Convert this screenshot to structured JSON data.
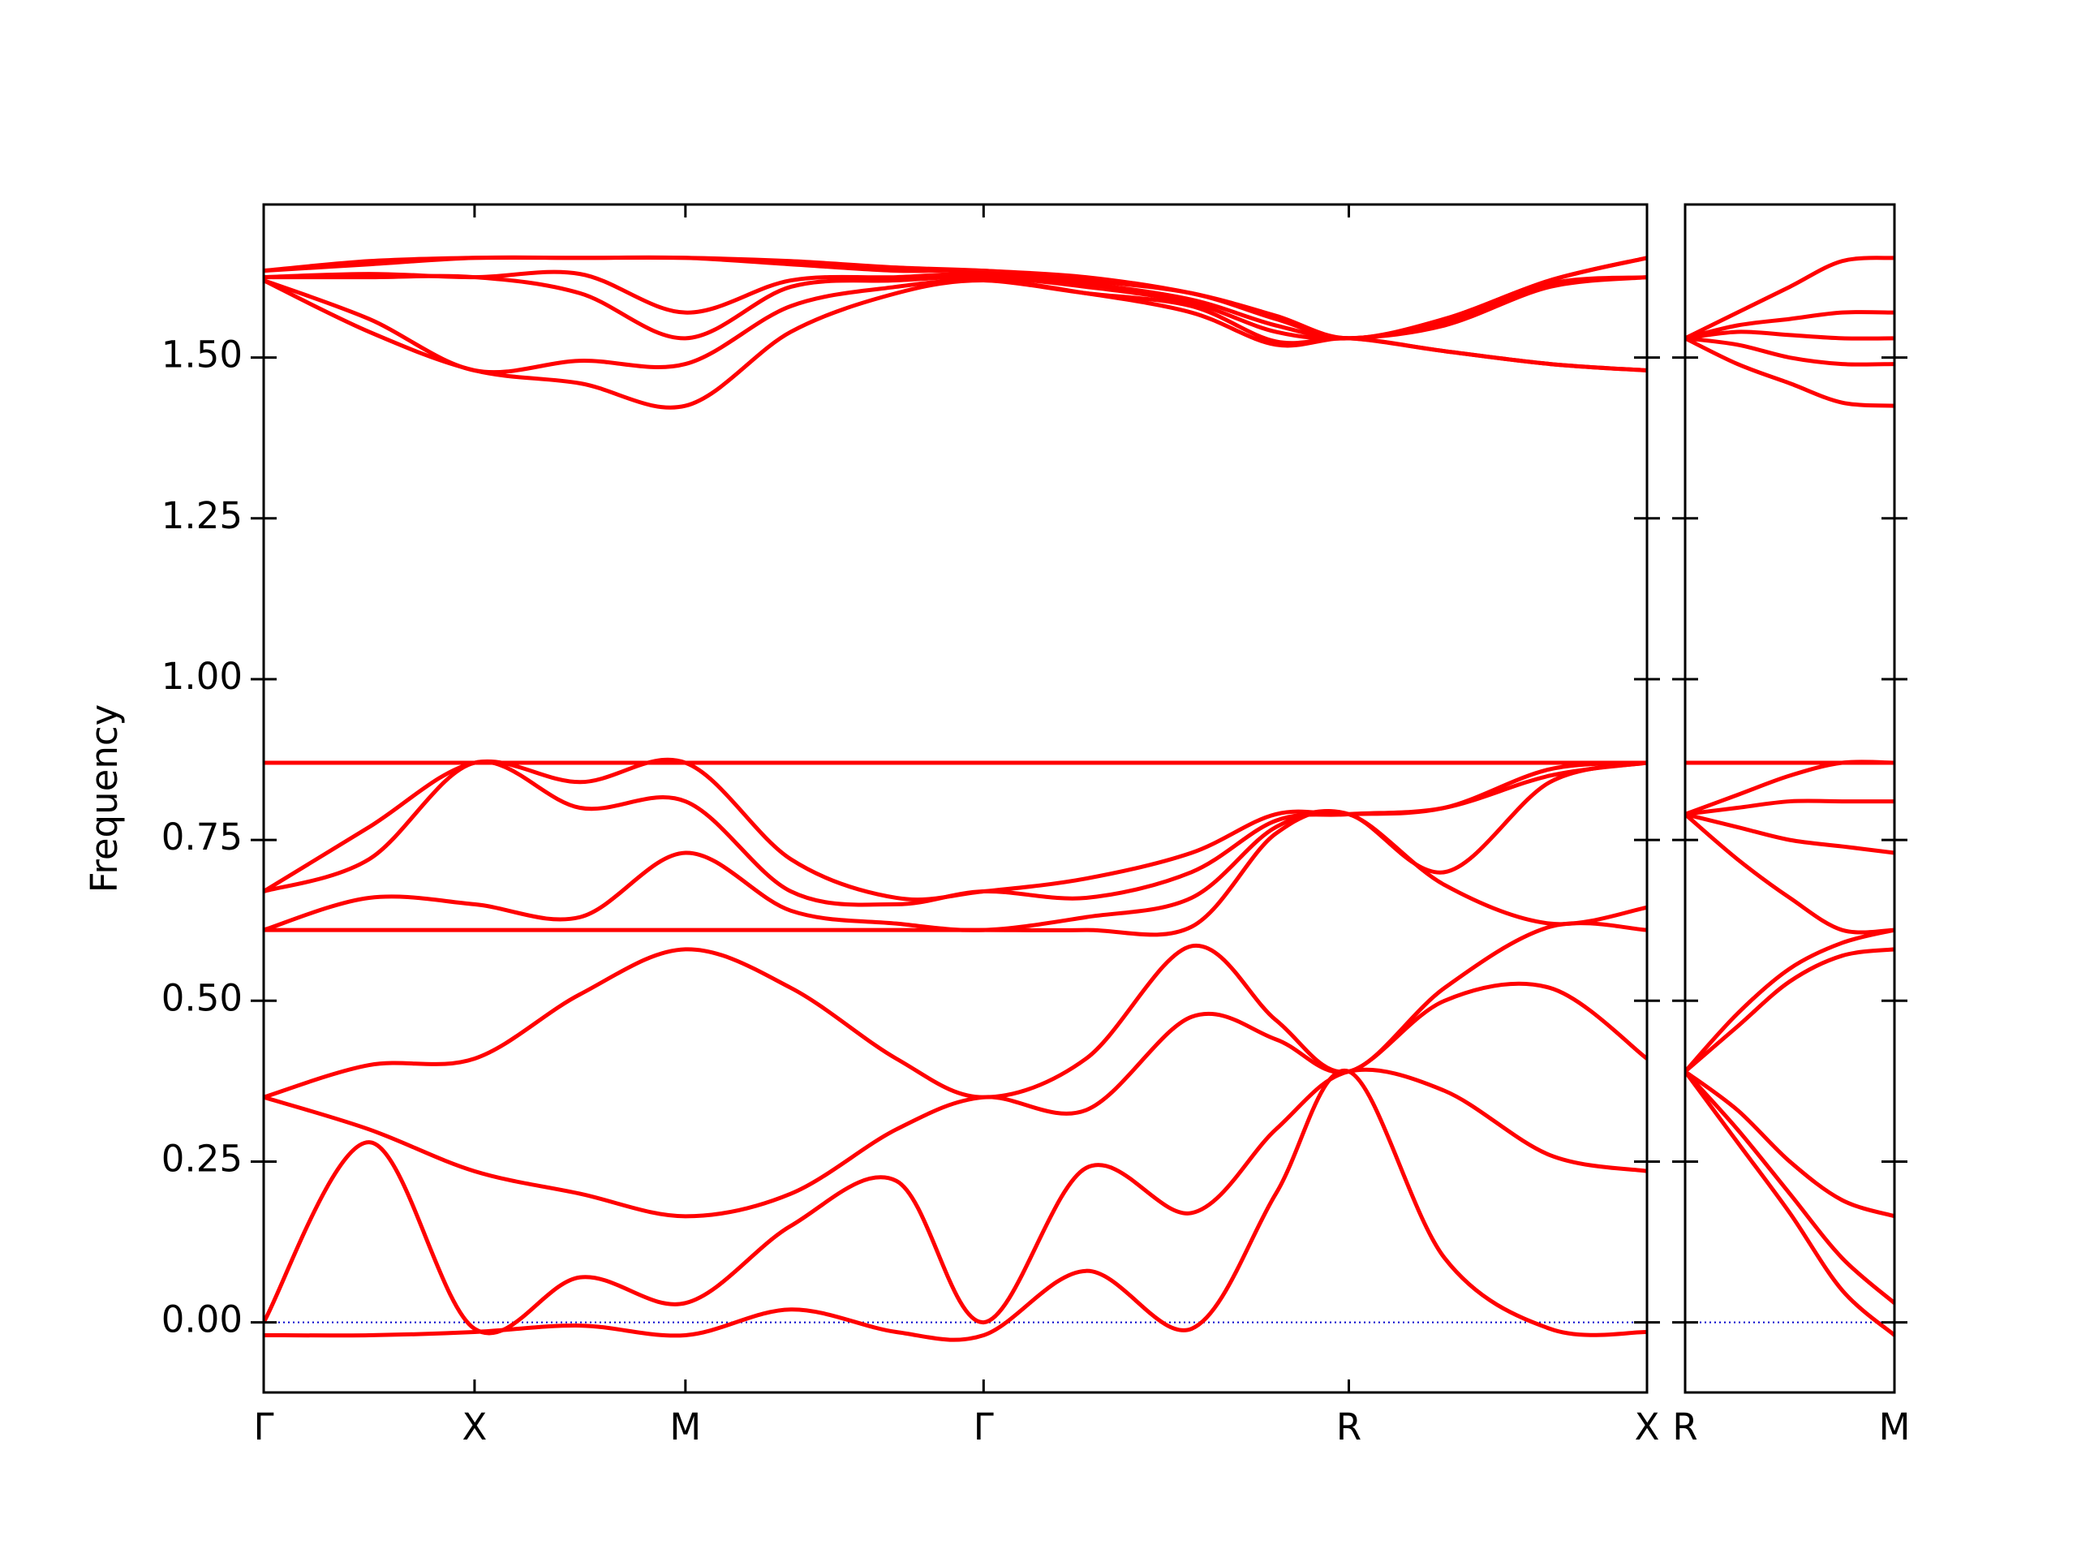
{
  "chart_data": [
    {
      "type": "line",
      "ylabel": "Frequency",
      "color": "#ff0000",
      "zero_line": {
        "value": 0,
        "color": "#0000cc"
      },
      "xlim": [
        0,
        6.56
      ],
      "ylim": [
        -0.109,
        1.738
      ],
      "xticks": [
        {
          "value": 0,
          "label": "Γ"
        },
        {
          "value": 1,
          "label": "X"
        },
        {
          "value": 2,
          "label": "M"
        },
        {
          "value": 3.414,
          "label": "Γ"
        },
        {
          "value": 5.146,
          "label": "R"
        },
        {
          "value": 6.56,
          "label": "X"
        }
      ],
      "yticks": [
        {
          "value": 0,
          "label": "0.00"
        },
        {
          "value": 0.25,
          "label": "0.25"
        },
        {
          "value": 0.5,
          "label": "0.50"
        },
        {
          "value": 0.75,
          "label": "0.75"
        },
        {
          "value": 1,
          "label": "1.00"
        },
        {
          "value": 1.25,
          "label": "1.25"
        },
        {
          "value": 1.5,
          "label": "1.50"
        }
      ],
      "x": [
        0,
        0.5,
        1,
        1.5,
        2,
        2.5,
        3,
        3.414,
        3.9,
        4.4,
        4.8,
        5.146,
        5.6,
        6.1,
        6.56
      ],
      "series": [
        {
          "values": [
            -0.02,
            -0.02,
            -0.015,
            -0.005,
            -0.02,
            0.02,
            -0.015,
            -0.02,
            0.08,
            -0.01,
            0.2,
            0.39,
            0.1,
            -0.01,
            -0.015
          ]
        },
        {
          "values": [
            0.0,
            0.28,
            -0.01,
            0.07,
            0.03,
            0.15,
            0.22,
            0.0,
            0.24,
            0.17,
            0.3,
            0.39,
            0.36,
            0.26,
            0.235
          ]
        },
        {
          "values": [
            0.35,
            0.3,
            0.235,
            0.2,
            0.165,
            0.2,
            0.3,
            0.35,
            0.33,
            0.475,
            0.44,
            0.39,
            0.5,
            0.52,
            0.41
          ]
        },
        {
          "values": [
            0.35,
            0.4,
            0.41,
            0.51,
            0.58,
            0.52,
            0.41,
            0.35,
            0.41,
            0.585,
            0.47,
            0.39,
            0.52,
            0.615,
            0.61
          ]
        },
        {
          "values": [
            0.61,
            0.61,
            0.61,
            0.61,
            0.61,
            0.61,
            0.61,
            0.61,
            0.61,
            0.615,
            0.76,
            0.79,
            0.68,
            0.62,
            0.645
          ]
        },
        {
          "values": [
            0.61,
            0.66,
            0.65,
            0.63,
            0.73,
            0.64,
            0.62,
            0.61,
            0.63,
            0.66,
            0.77,
            0.79,
            0.7,
            0.84,
            0.87
          ]
        },
        {
          "values": [
            0.67,
            0.72,
            0.87,
            0.8,
            0.81,
            0.67,
            0.65,
            0.67,
            0.66,
            0.7,
            0.78,
            0.79,
            0.8,
            0.85,
            0.87
          ]
        },
        {
          "values": [
            0.67,
            0.77,
            0.87,
            0.84,
            0.87,
            0.72,
            0.66,
            0.67,
            0.69,
            0.73,
            0.79,
            0.79,
            0.8,
            0.86,
            0.87
          ]
        },
        {
          "values": [
            0.87,
            0.87,
            0.87,
            0.87,
            0.87,
            0.87,
            0.87,
            0.87,
            0.87,
            0.87,
            0.87,
            0.87,
            0.87,
            0.87,
            0.87
          ]
        },
        {
          "values": [
            1.62,
            1.54,
            1.48,
            1.46,
            1.425,
            1.54,
            1.6,
            1.62,
            1.6,
            1.57,
            1.52,
            1.53,
            1.51,
            1.49,
            1.48
          ]
        },
        {
          "values": [
            1.62,
            1.56,
            1.48,
            1.495,
            1.49,
            1.58,
            1.61,
            1.62,
            1.6,
            1.58,
            1.525,
            1.53,
            1.51,
            1.49,
            1.48
          ]
        },
        {
          "values": [
            1.625,
            1.625,
            1.625,
            1.6,
            1.53,
            1.61,
            1.62,
            1.625,
            1.61,
            1.585,
            1.54,
            1.53,
            1.55,
            1.61,
            1.625
          ]
        },
        {
          "values": [
            1.625,
            1.63,
            1.625,
            1.63,
            1.57,
            1.62,
            1.625,
            1.63,
            1.615,
            1.59,
            1.55,
            1.53,
            1.555,
            1.615,
            1.625
          ]
        },
        {
          "values": [
            1.635,
            1.645,
            1.655,
            1.655,
            1.655,
            1.645,
            1.635,
            1.635,
            1.62,
            1.6,
            1.56,
            1.53,
            1.56,
            1.62,
            1.655
          ]
        },
        {
          "values": [
            1.635,
            1.65,
            1.655,
            1.655,
            1.655,
            1.65,
            1.64,
            1.635,
            1.625,
            1.6,
            1.565,
            1.53,
            1.56,
            1.62,
            1.655
          ]
        }
      ]
    },
    {
      "type": "line",
      "color": "#ff0000",
      "show_ytick_labels": false,
      "zero_line": {
        "value": 0,
        "color": "#0000cc"
      },
      "xlim": [
        0,
        1
      ],
      "ylim": [
        -0.109,
        1.738
      ],
      "xticks": [
        {
          "value": 0,
          "label": "R"
        },
        {
          "value": 1,
          "label": "M"
        }
      ],
      "yticks": [
        0,
        0.25,
        0.5,
        0.75,
        1,
        1.25,
        1.5
      ],
      "x": [
        0,
        0.25,
        0.5,
        0.75,
        1
      ],
      "series": [
        {
          "values": [
            0.39,
            0.28,
            0.17,
            0.05,
            -0.02
          ]
        },
        {
          "values": [
            0.39,
            0.3,
            0.2,
            0.1,
            0.03
          ]
        },
        {
          "values": [
            0.39,
            0.33,
            0.25,
            0.19,
            0.165
          ]
        },
        {
          "values": [
            0.39,
            0.46,
            0.53,
            0.57,
            0.58
          ]
        },
        {
          "values": [
            0.39,
            0.48,
            0.55,
            0.59,
            0.61
          ]
        },
        {
          "values": [
            0.79,
            0.72,
            0.66,
            0.61,
            0.61
          ]
        },
        {
          "values": [
            0.79,
            0.77,
            0.75,
            0.74,
            0.73
          ]
        },
        {
          "values": [
            0.79,
            0.8,
            0.81,
            0.81,
            0.81
          ]
        },
        {
          "values": [
            0.79,
            0.82,
            0.85,
            0.87,
            0.87
          ]
        },
        {
          "values": [
            0.87,
            0.87,
            0.87,
            0.87,
            0.87
          ]
        },
        {
          "values": [
            1.53,
            1.49,
            1.46,
            1.43,
            1.425
          ]
        },
        {
          "values": [
            1.53,
            1.52,
            1.5,
            1.49,
            1.49
          ]
        },
        {
          "values": [
            1.53,
            1.54,
            1.535,
            1.53,
            1.53
          ]
        },
        {
          "values": [
            1.53,
            1.55,
            1.56,
            1.57,
            1.57
          ]
        },
        {
          "values": [
            1.53,
            1.57,
            1.61,
            1.65,
            1.655
          ]
        }
      ]
    }
  ]
}
